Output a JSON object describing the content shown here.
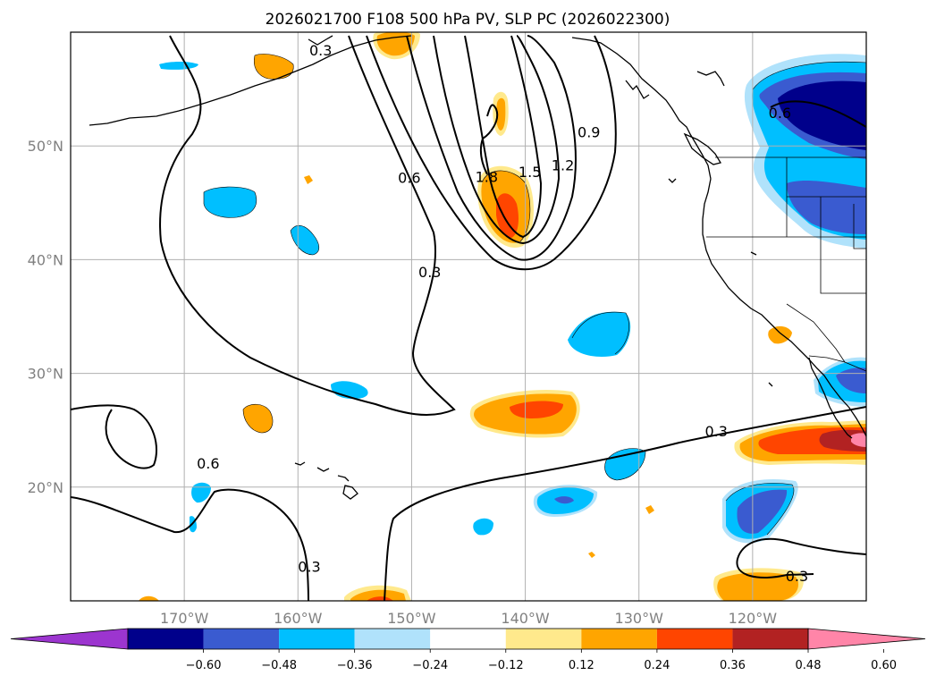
{
  "title": "2026021700 F108 500 hPa PV, SLP PC (2026022300)",
  "map_extent": {
    "lon_min": -180,
    "lon_max": -110,
    "lat_min": 10,
    "lat_max": 60
  },
  "longitude_ticks": [
    {
      "lon": -170,
      "label": "170°W"
    },
    {
      "lon": -160,
      "label": "160°W"
    },
    {
      "lon": -150,
      "label": "150°W"
    },
    {
      "lon": -140,
      "label": "140°W"
    },
    {
      "lon": -130,
      "label": "130°W"
    },
    {
      "lon": -120,
      "label": "120°W"
    }
  ],
  "latitude_ticks": [
    {
      "lat": 20,
      "label": "20°N"
    },
    {
      "lat": 30,
      "label": "30°N"
    },
    {
      "lat": 40,
      "label": "40°N"
    },
    {
      "lat": 50,
      "label": "50°N"
    }
  ],
  "colorbar": {
    "bounds": [
      -0.72,
      -0.6,
      -0.48,
      -0.36,
      -0.24,
      -0.12,
      0.12,
      0.24,
      0.36,
      0.48,
      0.6,
      0.72
    ],
    "tick_labels": [
      "−0.60",
      "−0.48",
      "−0.36",
      "−0.24",
      "−0.12",
      "0.12",
      "0.24",
      "0.36",
      "0.48",
      "0.60"
    ],
    "colors": [
      "#9c35cf",
      "#00008b",
      "#3a5bd0",
      "#00bfff",
      "#b0e2fb",
      "#ffffff",
      "#ffe98c",
      "#ffa500",
      "#ff4500",
      "#b22222",
      "#ff85a8"
    ],
    "extend": "both"
  },
  "slp_contour_labels": [
    {
      "text": "0.3",
      "lon": -158,
      "lat": 58.3
    },
    {
      "text": "1.8",
      "lon": -143.4,
      "lat": 47.2
    },
    {
      "text": "1.5",
      "lon": -139.6,
      "lat": 47.6
    },
    {
      "text": "1.2",
      "lon": -136.7,
      "lat": 48.2
    },
    {
      "text": "0.9",
      "lon": -134.4,
      "lat": 51.1
    },
    {
      "text": "0.6",
      "lon": -150.2,
      "lat": 47.1
    },
    {
      "text": "0.3",
      "lon": -148.4,
      "lat": 38.8
    },
    {
      "text": "0.6",
      "lon": -117.6,
      "lat": 52.8
    },
    {
      "text": "0.6",
      "lon": -167.9,
      "lat": 22.0
    },
    {
      "text": "0.3",
      "lon": -123.2,
      "lat": 24.8
    },
    {
      "text": "0.3",
      "lon": -159.0,
      "lat": 12.9
    },
    {
      "text": "0.3",
      "lon": -116.1,
      "lat": 12.1
    }
  ]
}
